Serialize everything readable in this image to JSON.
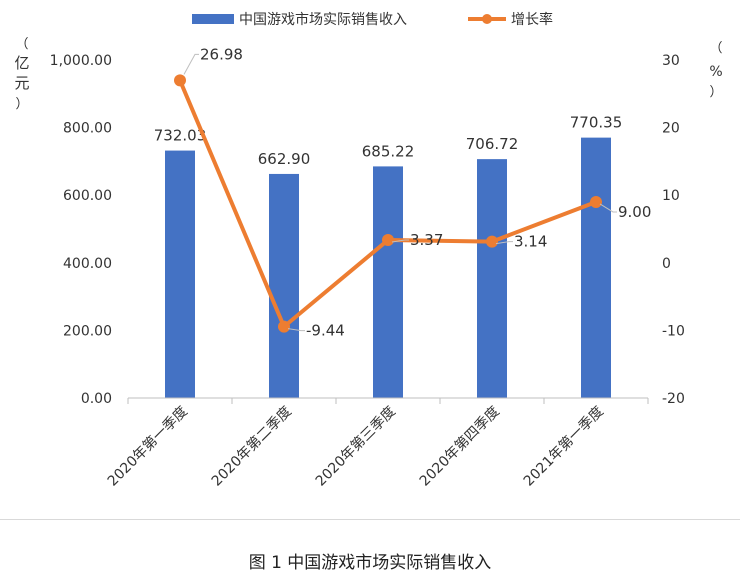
{
  "caption": "图 1  中国游戏市场实际销售收入",
  "chart_data": {
    "type": "bar",
    "categories": [
      "2020年第一季度",
      "2020年第二季度",
      "2020年第三季度",
      "2020年第四季度",
      "2021年第一季度"
    ],
    "series": [
      {
        "name": "中国游戏市场实际销售收入",
        "type": "bar",
        "axis": "left",
        "values": [
          732.03,
          662.9,
          685.22,
          706.72,
          770.35
        ],
        "labels": [
          "732.03",
          "662.90",
          "685.22",
          "706.72",
          "770.35"
        ]
      },
      {
        "name": "增长率",
        "type": "line",
        "axis": "right",
        "values": [
          26.98,
          -9.44,
          3.37,
          3.14,
          9.0
        ],
        "labels": [
          "26.98",
          "-9.44",
          "3.37",
          "3.14",
          "9.00"
        ]
      }
    ],
    "left_axis": {
      "unit": "亿元",
      "ylim": [
        0,
        1000
      ],
      "ticks": [
        "0.00",
        "200.00",
        "400.00",
        "600.00",
        "800.00",
        "1,000.00"
      ]
    },
    "right_axis": {
      "unit": "%",
      "ylim": [
        -20,
        30
      ],
      "ticks": [
        "-20",
        "-10",
        "0",
        "10",
        "20",
        "30"
      ]
    },
    "legend_position": "top",
    "grid": false,
    "colors": {
      "bar": "#4472c4",
      "line": "#ed7d31"
    }
  }
}
